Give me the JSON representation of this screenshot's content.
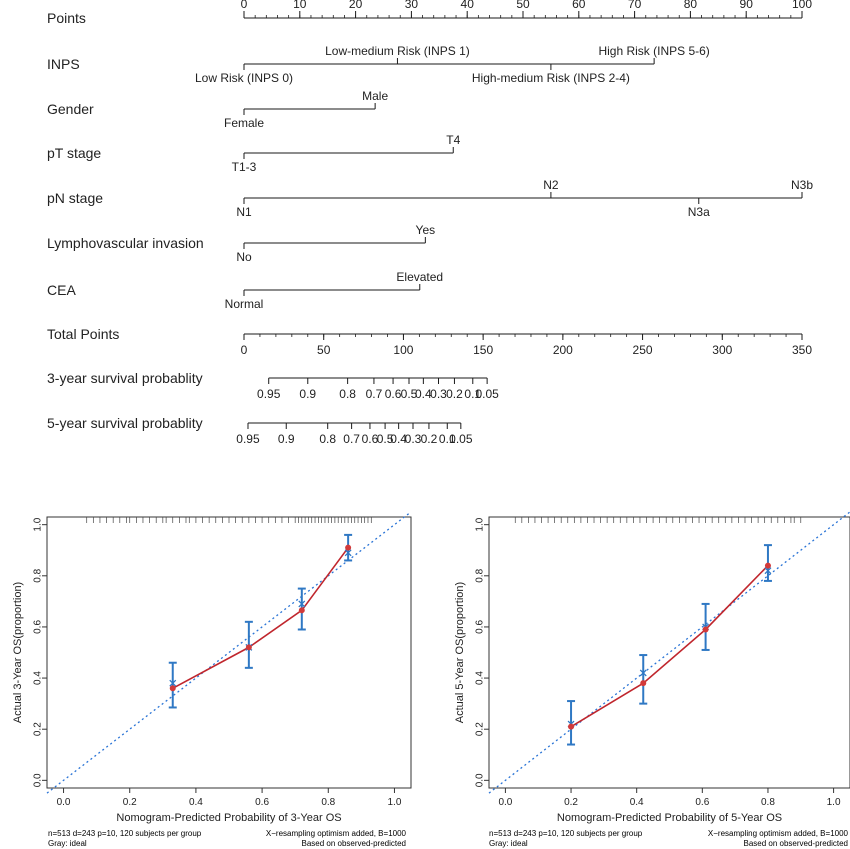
{
  "nomogram": {
    "rows": [
      {
        "label": "Points"
      },
      {
        "label": "INPS"
      },
      {
        "label": "Gender"
      },
      {
        "label": "pT stage"
      },
      {
        "label": "pN stage"
      },
      {
        "label": "Lymphovascular invasion"
      },
      {
        "label": "CEA"
      },
      {
        "label": "Total Points"
      },
      {
        "label": "3-year survival probablity"
      },
      {
        "label": "5-year survival probablity"
      }
    ]
  },
  "calibration_footer": {
    "left": {
      "line1_left": "n=513 d=243 p=10, 120 subjects per group",
      "line2_left": "Gray: ideal",
      "line1_right": "X−resampling optimism added, B=1000",
      "line2_right": "Based on observed-predicted"
    },
    "right": {
      "line1_left": "n=513 d=243 p=10, 120 subjects per group",
      "line2_left": "Gray: ideal",
      "line1_right": "X−resampling optimism added, B=1000",
      "line2_right": "Based on observed-predicted"
    }
  },
  "colors": {
    "axis": "#1a1a1a",
    "ideal_line": "#2a74d6",
    "observed_line": "#c0262d",
    "error_bar": "#2f78c4",
    "marker": "#d23a3a"
  },
  "chart_data": [
    {
      "type": "nomogram",
      "points_axis": {
        "min": 0,
        "max": 100,
        "labeled_ticks": [
          0,
          10,
          20,
          30,
          40,
          50,
          60,
          70,
          80,
          90,
          100
        ],
        "minor_step": 2
      },
      "variables": [
        {
          "name": "INPS",
          "levels": [
            {
              "label": "Low Risk (INPS 0)",
              "points": 0
            },
            {
              "label": "Low-medium Risk (INPS 1)",
              "points": 27.5
            },
            {
              "label": "High-medium Risk (INPS 2-4)",
              "points": 55
            },
            {
              "label": "High Risk (INPS 5-6)",
              "points": 73.5
            }
          ]
        },
        {
          "name": "Gender",
          "levels": [
            {
              "label": "Female",
              "points": 0
            },
            {
              "label": "Male",
              "points": 23.5
            }
          ]
        },
        {
          "name": "pT stage",
          "levels": [
            {
              "label": "T1-3",
              "points": 0
            },
            {
              "label": "T4",
              "points": 37.5
            }
          ]
        },
        {
          "name": "pN stage",
          "levels": [
            {
              "label": "N1",
              "points": 0
            },
            {
              "label": "N2",
              "points": 55
            },
            {
              "label": "N3a",
              "points": 81.5
            },
            {
              "label": "N3b",
              "points": 100
            }
          ]
        },
        {
          "name": "Lymphovascular invasion",
          "levels": [
            {
              "label": "No",
              "points": 0
            },
            {
              "label": "Yes",
              "points": 32.5
            }
          ]
        },
        {
          "name": "CEA",
          "levels": [
            {
              "label": "Normal",
              "points": 0
            },
            {
              "label": "Elevated",
              "points": 31.5
            }
          ]
        }
      ],
      "total_points_axis": {
        "min": 0,
        "max": 350,
        "labeled_ticks": [
          0,
          50,
          100,
          150,
          200,
          250,
          300,
          350
        ],
        "minor_step": 10
      },
      "survival_axes": [
        {
          "name": "3-year survival probablity",
          "ticks": [
            {
              "label": "0.95",
              "total_points": 15.5
            },
            {
              "label": "0.9",
              "total_points": 40
            },
            {
              "label": "0.8",
              "total_points": 65
            },
            {
              "label": "0.7",
              "total_points": 81.5
            },
            {
              "label": "0.6",
              "total_points": 93.5
            },
            {
              "label": "0.5",
              "total_points": 103.5
            },
            {
              "label": "0.4",
              "total_points": 112.5
            },
            {
              "label": "0.3",
              "total_points": 122
            },
            {
              "label": "0.2",
              "total_points": 132
            },
            {
              "label": "0.1",
              "total_points": 143.5
            },
            {
              "label": "0.05",
              "total_points": 152.5
            }
          ]
        },
        {
          "name": "5-year survival probablity",
          "ticks": [
            {
              "label": "0.95",
              "total_points": 2.5
            },
            {
              "label": "0.9",
              "total_points": 26.5
            },
            {
              "label": "0.8",
              "total_points": 52.5
            },
            {
              "label": "0.7",
              "total_points": 67.5
            },
            {
              "label": "0.6",
              "total_points": 79
            },
            {
              "label": "0.5",
              "total_points": 88.5
            },
            {
              "label": "0.4",
              "total_points": 97
            },
            {
              "label": "0.3",
              "total_points": 106
            },
            {
              "label": "0.2",
              "total_points": 116
            },
            {
              "label": "0.1",
              "total_points": 127.5
            },
            {
              "label": "0.05",
              "total_points": 136
            }
          ]
        }
      ]
    },
    {
      "type": "line",
      "xlabel": "Nomogram-Predicted Probability of 3-Year OS",
      "ylabel": "Actual 3-Year OS(proportion)",
      "xlim": [
        -0.05,
        1.05
      ],
      "ylim": [
        -0.03,
        1.03
      ],
      "xticks": [
        "0.0",
        "0.2",
        "0.4",
        "0.6",
        "0.8",
        "1.0"
      ],
      "yticks": [
        "0.0",
        "0.2",
        "0.4",
        "0.6",
        "0.8",
        "1.0"
      ],
      "ideal_line": true,
      "series": [
        {
          "x": [
            0.33,
            0.56,
            0.72,
            0.86
          ],
          "y": [
            0.36,
            0.52,
            0.665,
            0.91
          ],
          "ci_low": [
            0.285,
            0.44,
            0.59,
            0.86
          ],
          "ci_high": [
            0.46,
            0.62,
            0.75,
            0.96
          ],
          "bias_corrected": [
            0.38,
            0.52,
            0.69,
            0.89
          ]
        }
      ],
      "rug": [
        0.07,
        0.09,
        0.11,
        0.13,
        0.15,
        0.17,
        0.19,
        0.2,
        0.22,
        0.24,
        0.26,
        0.28,
        0.3,
        0.31,
        0.33,
        0.35,
        0.37,
        0.38,
        0.4,
        0.42,
        0.44,
        0.46,
        0.48,
        0.5,
        0.52,
        0.54,
        0.56,
        0.58,
        0.6,
        0.62,
        0.64,
        0.66,
        0.68,
        0.7,
        0.71,
        0.72,
        0.73,
        0.74,
        0.75,
        0.76,
        0.77,
        0.78,
        0.79,
        0.8,
        0.81,
        0.82,
        0.83,
        0.84,
        0.85,
        0.86,
        0.87,
        0.88,
        0.89,
        0.9,
        0.91,
        0.92,
        0.93
      ]
    },
    {
      "type": "line",
      "xlabel": "Nomogram-Predicted Probability of 5-Year OS",
      "ylabel": "Actual 5-Year OS(proportion)",
      "xlim": [
        -0.05,
        1.05
      ],
      "ylim": [
        -0.03,
        1.03
      ],
      "xticks": [
        "0.0",
        "0.2",
        "0.4",
        "0.6",
        "0.8",
        "1.0"
      ],
      "yticks": [
        "0.0",
        "0.2",
        "0.4",
        "0.6",
        "0.8",
        "1.0"
      ],
      "ideal_line": true,
      "series": [
        {
          "x": [
            0.2,
            0.42,
            0.61,
            0.8
          ],
          "y": [
            0.21,
            0.38,
            0.59,
            0.84
          ],
          "ci_low": [
            0.14,
            0.3,
            0.51,
            0.78
          ],
          "ci_high": [
            0.31,
            0.49,
            0.69,
            0.92
          ],
          "bias_corrected": [
            0.22,
            0.42,
            0.6,
            0.82
          ]
        }
      ],
      "rug": [
        0.03,
        0.05,
        0.07,
        0.09,
        0.11,
        0.13,
        0.15,
        0.17,
        0.19,
        0.21,
        0.23,
        0.25,
        0.27,
        0.29,
        0.31,
        0.33,
        0.35,
        0.37,
        0.39,
        0.41,
        0.43,
        0.45,
        0.47,
        0.49,
        0.51,
        0.53,
        0.55,
        0.57,
        0.59,
        0.61,
        0.63,
        0.65,
        0.67,
        0.69,
        0.71,
        0.73,
        0.75,
        0.77,
        0.79,
        0.81,
        0.83,
        0.85,
        0.87,
        0.88,
        0.9
      ]
    }
  ]
}
